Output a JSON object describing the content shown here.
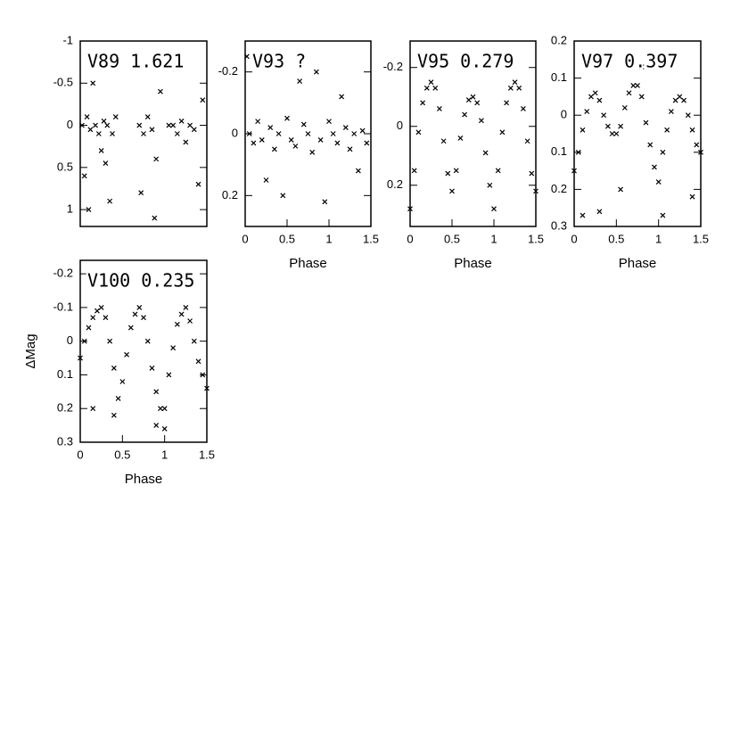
{
  "chart_data": [
    {
      "type": "scatter",
      "title": "V89 1.621",
      "xlim": [
        0,
        1.5
      ],
      "ylim": [
        -1,
        1.2
      ],
      "yticks": [
        -1,
        -0.5,
        0,
        0.5,
        1
      ],
      "x": [
        0.02,
        0.08,
        0.12,
        0.18,
        0.22,
        0.28,
        0.32,
        0.38,
        0.42,
        0.05,
        0.15,
        0.25,
        0.35,
        0.7,
        0.75,
        0.8,
        0.85,
        0.9,
        0.95,
        1.1,
        1.15,
        1.2,
        1.25,
        1.3,
        1.4,
        1.45,
        0.1,
        0.3,
        0.72,
        1.35,
        0.88,
        1.05
      ],
      "values": [
        0,
        -0.1,
        0.05,
        0,
        0.1,
        -0.05,
        0,
        0.1,
        -0.1,
        0.6,
        -0.5,
        0.3,
        0.9,
        0,
        0.1,
        -0.1,
        0.05,
        0.4,
        -0.4,
        0,
        0.1,
        -0.05,
        0.2,
        0,
        0.7,
        -0.3,
        1.0,
        0.45,
        0.8,
        0.05,
        1.1,
        0.0
      ]
    },
    {
      "type": "scatter",
      "title": "V93 ?",
      "xlabel": "Phase",
      "xlim": [
        0,
        1.5
      ],
      "ylim": [
        -0.3,
        0.3
      ],
      "xticks": [
        0,
        0.5,
        1,
        1.5
      ],
      "yticks": [
        -0.2,
        0,
        0.2
      ],
      "x": [
        0.05,
        0.1,
        0.15,
        0.2,
        0.3,
        0.35,
        0.4,
        0.5,
        0.55,
        0.6,
        0.7,
        0.75,
        0.8,
        0.9,
        1.0,
        1.05,
        1.1,
        1.2,
        1.25,
        1.3,
        1.4,
        1.45,
        0.25,
        0.65,
        0.95,
        1.15,
        1.35,
        0.45,
        0.85,
        0.02
      ],
      "values": [
        0,
        0.03,
        -0.04,
        0.02,
        -0.02,
        0.05,
        0,
        -0.05,
        0.02,
        0.04,
        -0.03,
        0,
        0.06,
        0.02,
        -0.04,
        0,
        0.03,
        -0.02,
        0.05,
        0,
        -0.01,
        0.03,
        0.15,
        -0.17,
        0.22,
        -0.12,
        0.12,
        0.2,
        -0.2,
        -0.25
      ]
    },
    {
      "type": "scatter",
      "title": "V95 0.279",
      "xlabel": "Phase",
      "xlim": [
        0,
        1.5
      ],
      "ylim": [
        -0.29,
        0.34
      ],
      "xticks": [
        0,
        0.5,
        1,
        1.5
      ],
      "yticks": [
        -0.2,
        0,
        0.2
      ],
      "x": [
        0,
        0.05,
        0.1,
        0.15,
        0.2,
        0.25,
        0.3,
        0.35,
        0.4,
        0.45,
        0.5,
        0.55,
        0.6,
        0.65,
        0.7,
        0.75,
        0.8,
        0.85,
        0.9,
        0.95,
        1.0,
        1.05,
        1.1,
        1.15,
        1.2,
        1.25,
        1.3,
        1.35,
        1.4,
        1.45,
        1.5
      ],
      "values": [
        0.28,
        0.15,
        0.02,
        -0.08,
        -0.13,
        -0.15,
        -0.13,
        -0.06,
        0.05,
        0.16,
        0.22,
        0.15,
        0.04,
        -0.04,
        -0.09,
        -0.1,
        -0.08,
        -0.02,
        0.09,
        0.2,
        0.28,
        0.15,
        0.02,
        -0.08,
        -0.13,
        -0.15,
        -0.13,
        -0.06,
        0.05,
        0.16,
        0.22
      ]
    },
    {
      "type": "scatter",
      "title": "V97 0.397",
      "xlabel": "Phase",
      "xlim": [
        0,
        1.5
      ],
      "ylim": [
        -0.2,
        0.3
      ],
      "xticks": [
        0,
        0.5,
        1,
        1.5
      ],
      "yticks": [
        {
          "value": -0.2,
          "label": "0.2"
        },
        {
          "value": -0.1,
          "label": "0.1"
        },
        0,
        0.1,
        0.2,
        0.3
      ],
      "x": [
        0,
        0.05,
        0.1,
        0.15,
        0.2,
        0.25,
        0.3,
        0.35,
        0.4,
        0.45,
        0.5,
        0.55,
        0.6,
        0.65,
        0.7,
        0.75,
        0.8,
        0.85,
        0.9,
        0.95,
        1.0,
        1.05,
        1.1,
        1.15,
        1.2,
        1.25,
        1.3,
        1.35,
        1.4,
        1.45,
        1.5,
        0.1,
        0.3,
        1.05,
        1.4,
        0.55,
        0.8
      ],
      "values": [
        0.15,
        0.1,
        0.04,
        -0.01,
        -0.05,
        -0.06,
        -0.04,
        0,
        0.03,
        0.05,
        0.05,
        0.03,
        -0.02,
        -0.06,
        -0.08,
        -0.08,
        -0.05,
        0.02,
        0.08,
        0.14,
        0.18,
        0.1,
        0.04,
        -0.01,
        -0.04,
        -0.05,
        -0.04,
        0,
        0.04,
        0.08,
        0.1,
        0.27,
        0.26,
        0.27,
        0.22,
        0.2,
        -0.13
      ]
    },
    {
      "type": "scatter",
      "title": "V100 0.235",
      "xlabel": "Phase",
      "ylabel": "ΔMag",
      "xlim": [
        0,
        1.5
      ],
      "ylim": [
        -0.24,
        0.3
      ],
      "xticks": [
        0,
        0.5,
        1,
        1.5
      ],
      "yticks": [
        -0.2,
        -0.1,
        0,
        0.1,
        0.2,
        0.3
      ],
      "x": [
        0,
        0.05,
        0.1,
        0.15,
        0.2,
        0.25,
        0.3,
        0.35,
        0.4,
        0.45,
        0.5,
        0.55,
        0.6,
        0.65,
        0.7,
        0.75,
        0.8,
        0.85,
        0.9,
        0.95,
        1.0,
        1.05,
        1.1,
        1.15,
        1.2,
        1.25,
        1.3,
        1.35,
        1.4,
        1.45,
        1.5,
        0.4,
        0.9,
        1.0,
        0.15
      ],
      "values": [
        0.05,
        0,
        -0.04,
        -0.07,
        -0.09,
        -0.1,
        -0.07,
        0,
        0.08,
        0.17,
        0.12,
        0.04,
        -0.04,
        -0.08,
        -0.1,
        -0.07,
        0,
        0.08,
        0.15,
        0.2,
        0.2,
        0.1,
        0.02,
        -0.05,
        -0.08,
        -0.1,
        -0.06,
        0,
        0.06,
        0.1,
        0.14,
        0.22,
        0.25,
        0.26,
        0.2
      ]
    }
  ]
}
